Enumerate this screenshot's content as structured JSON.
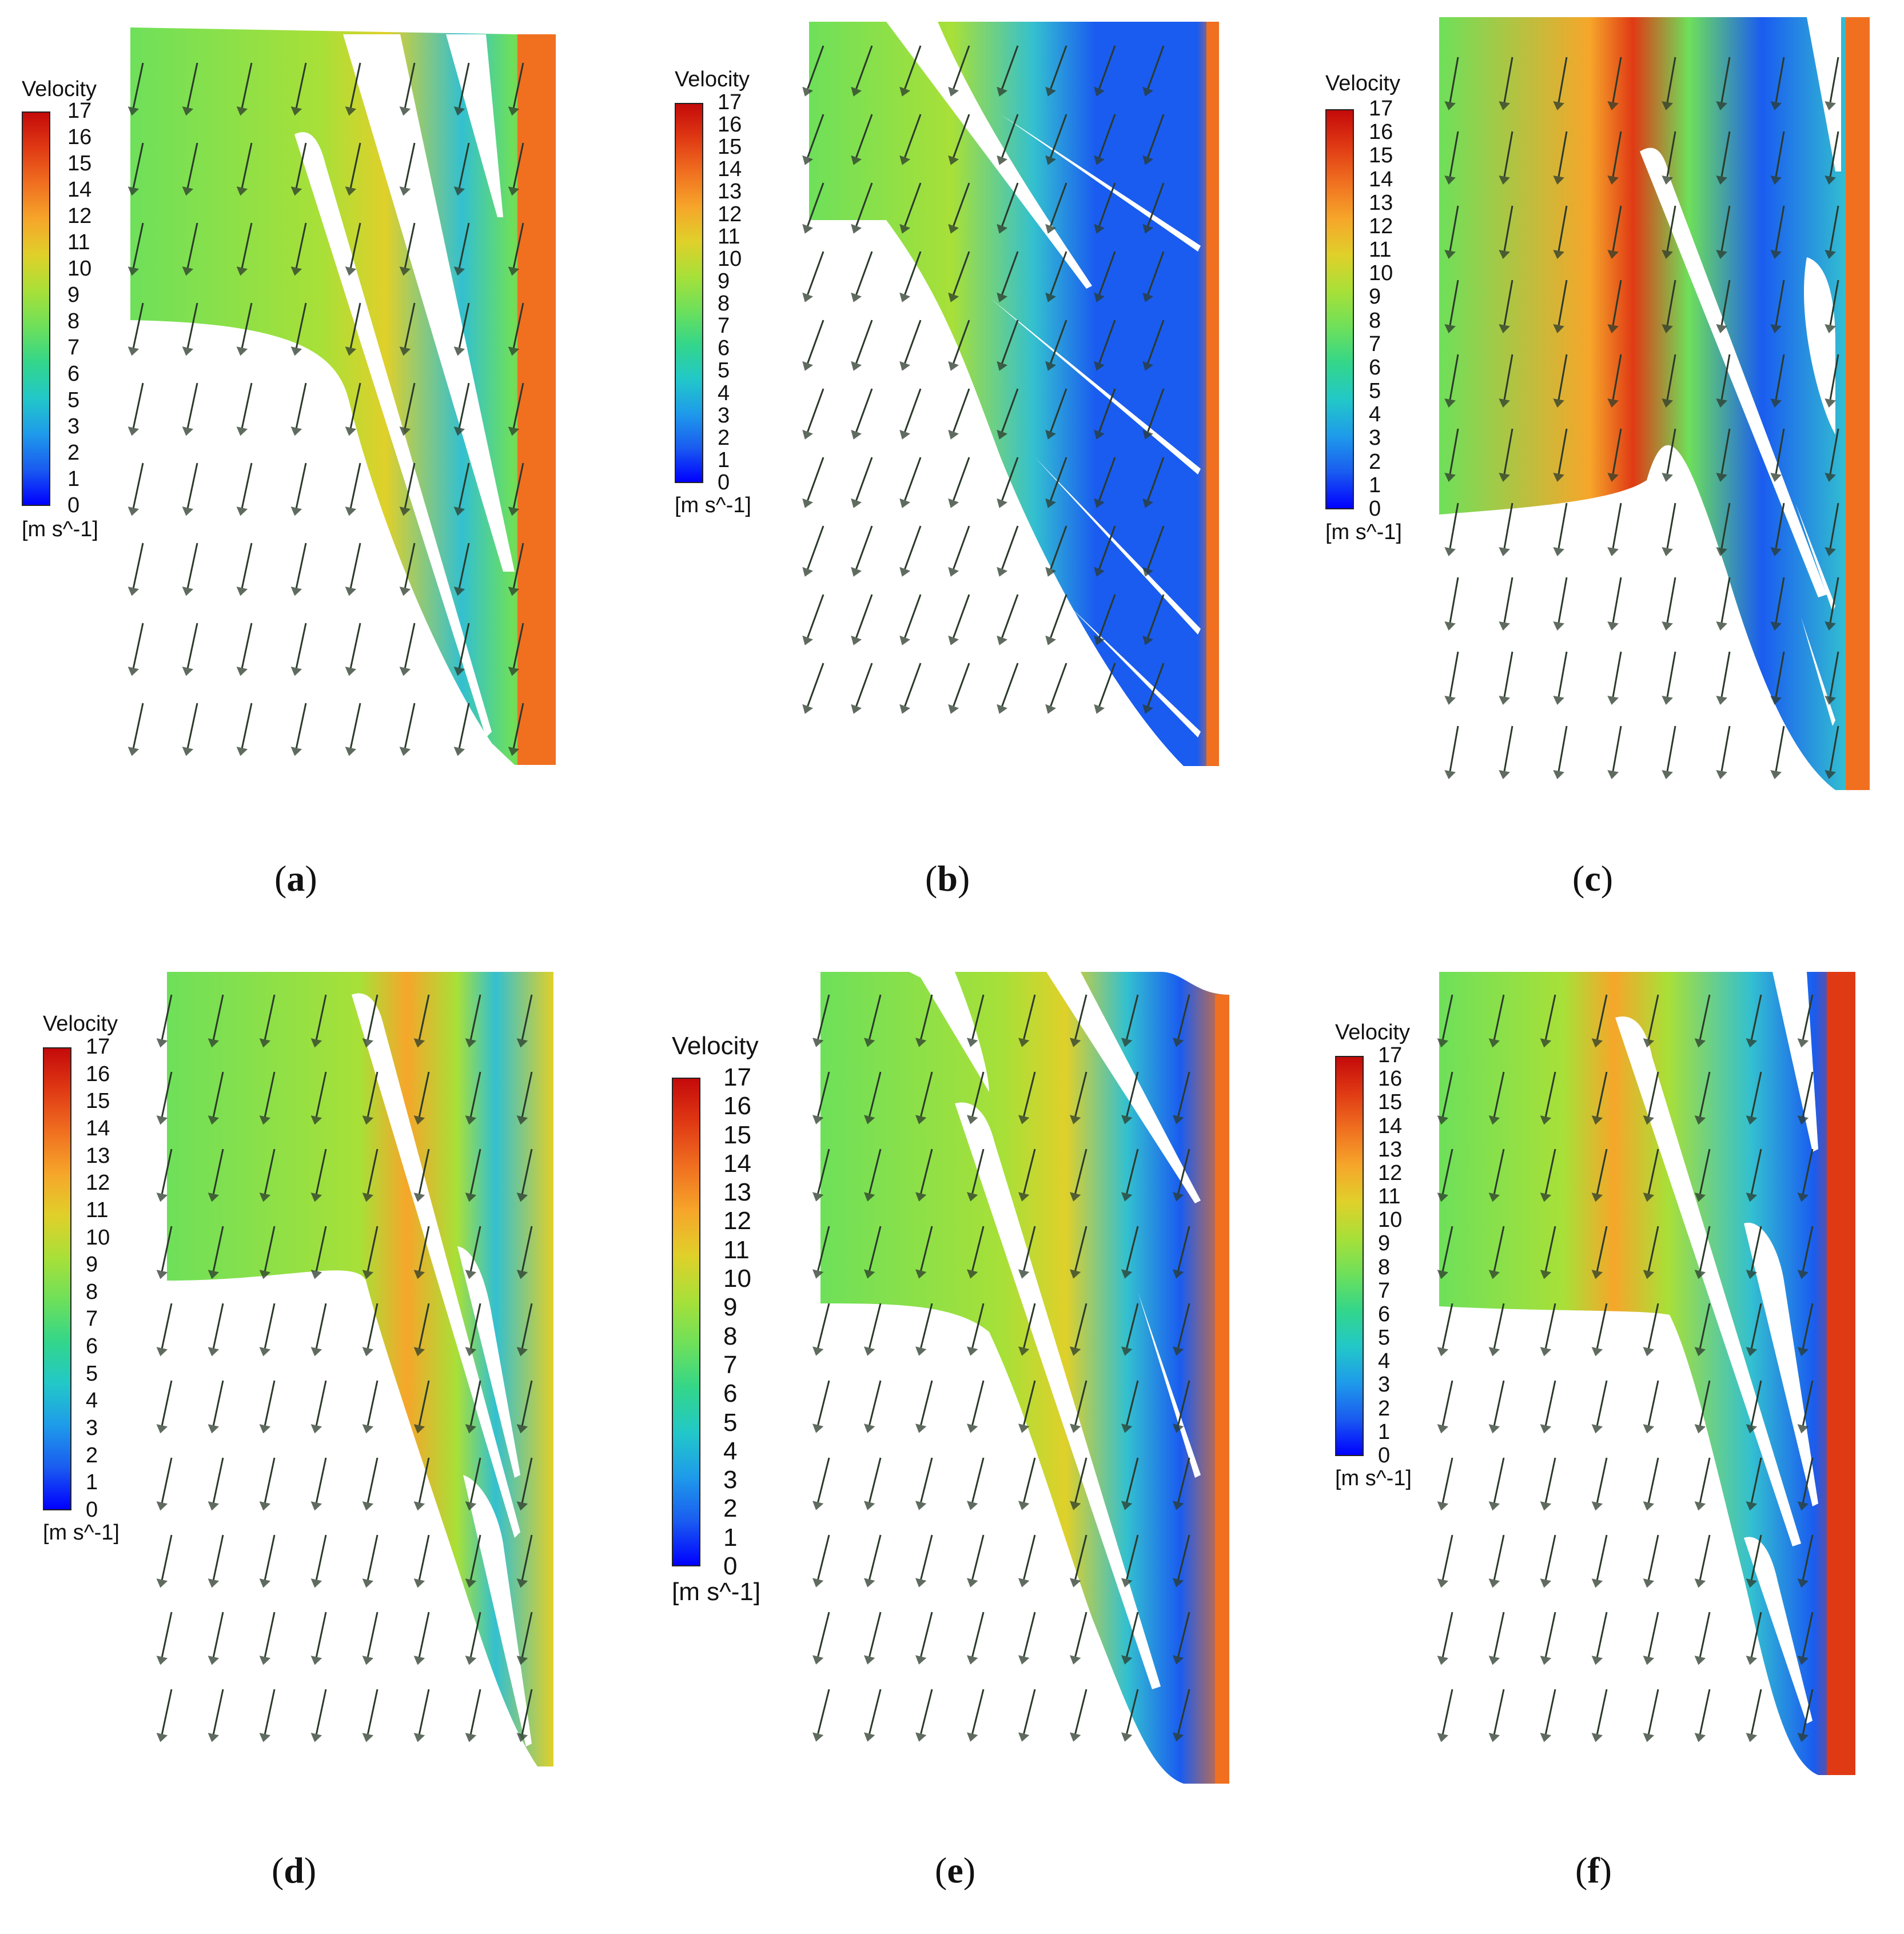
{
  "colorbar_colors": [
    "#0000ff",
    "#1a5cf0",
    "#1e9bea",
    "#22c8c8",
    "#33d68a",
    "#6ee05a",
    "#a8e038",
    "#e0d02a",
    "#f6a62a",
    "#f07020",
    "#e03a14",
    "#c40a0a"
  ],
  "colors": {
    "blade_interior": "#ffffff",
    "arrow": "#2b3a2b",
    "text": "#111111"
  },
  "panels": [
    {
      "id": "a",
      "caption_open": "(",
      "caption_letter": "a",
      "caption_close": ")",
      "legend": {
        "title": "Velocity",
        "unit": "[m s^-1]",
        "ticks": [
          "17",
          "16",
          "15",
          "14",
          "12",
          "11",
          "10",
          "9",
          "8",
          "7",
          "6",
          "5",
          "3",
          "2",
          "1",
          "0"
        ]
      }
    },
    {
      "id": "b",
      "caption_open": "(",
      "caption_letter": "b",
      "caption_close": ")",
      "legend": {
        "title": "Velocity",
        "unit": "[m s^-1]",
        "ticks": [
          "17",
          "16",
          "15",
          "14",
          "13",
          "12",
          "11",
          "10",
          "9",
          "8",
          "7",
          "6",
          "5",
          "4",
          "3",
          "2",
          "1",
          "0"
        ]
      }
    },
    {
      "id": "c",
      "caption_open": "(",
      "caption_letter": "c",
      "caption_close": ")",
      "legend": {
        "title": "Velocity",
        "unit": "[m s^-1]",
        "ticks": [
          "17",
          "16",
          "15",
          "14",
          "13",
          "12",
          "11",
          "10",
          "9",
          "8",
          "7",
          "6",
          "5",
          "4",
          "3",
          "2",
          "1",
          "0"
        ]
      }
    },
    {
      "id": "d",
      "caption_open": "(",
      "caption_letter": "d",
      "caption_close": ")",
      "legend": {
        "title": "Velocity",
        "unit": "[m s^-1]",
        "ticks": [
          "17",
          "16",
          "15",
          "14",
          "13",
          "12",
          "11",
          "10",
          "9",
          "8",
          "7",
          "6",
          "5",
          "4",
          "3",
          "2",
          "1",
          "0"
        ]
      }
    },
    {
      "id": "e",
      "caption_open": "(",
      "caption_letter": "e",
      "caption_close": ")",
      "legend": {
        "title": "Velocity",
        "unit": "[m s^-1]",
        "ticks": [
          "17",
          "16",
          "15",
          "14",
          "13",
          "12",
          "11",
          "10",
          "9",
          "8",
          "7",
          "6",
          "5",
          "4",
          "3",
          "2",
          "1",
          "0"
        ]
      }
    },
    {
      "id": "f",
      "caption_open": "(",
      "caption_letter": "f",
      "caption_close": ")",
      "legend": {
        "title": "Velocity",
        "unit": "[m s^-1]",
        "ticks": [
          "17",
          "16",
          "15",
          "14",
          "13",
          "12",
          "11",
          "10",
          "9",
          "8",
          "7",
          "6",
          "5",
          "4",
          "3",
          "2",
          "1",
          "0"
        ]
      }
    }
  ]
}
